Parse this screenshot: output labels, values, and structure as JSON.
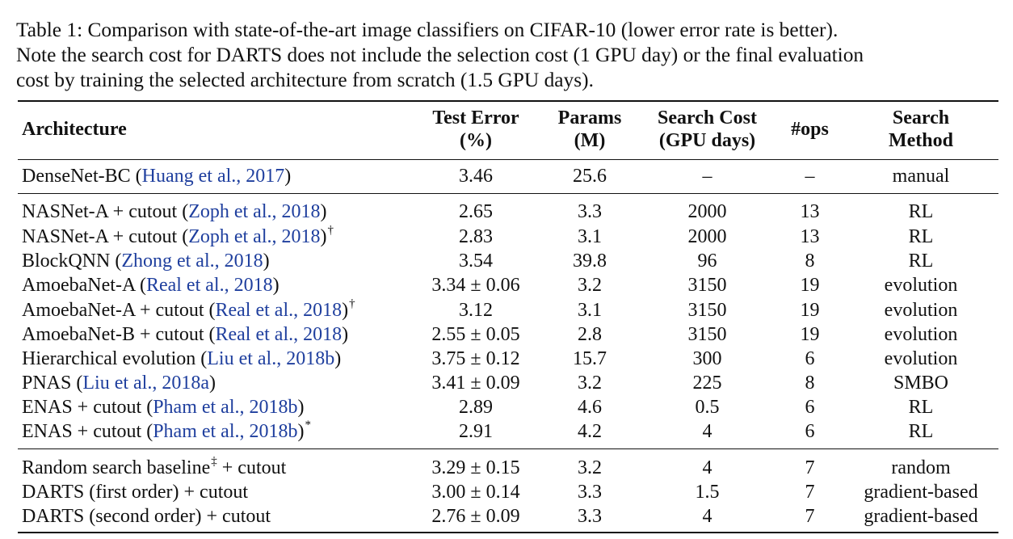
{
  "caption": {
    "lines": [
      "Table 1: Comparison with state-of-the-art image classifiers on CIFAR-10 (lower error rate is better).",
      "Note the search cost for DARTS does not include the selection cost (1 GPU day) or the final evaluation",
      "cost by training the selected architecture from scratch (1.5 GPU days)."
    ]
  },
  "header": {
    "architecture": "Architecture",
    "test_error": [
      "Test Error",
      "(%)"
    ],
    "params": [
      "Params",
      "(M)"
    ],
    "search_cost": [
      "Search Cost",
      "(GPU days)"
    ],
    "ops": "#ops",
    "search_method": [
      "Search",
      "Method"
    ]
  },
  "rows": [
    {
      "name": "DenseNet-BC (",
      "cite": "Huang et al., 2017",
      "post": ")",
      "mark": "",
      "test_error": "3.46",
      "params": "25.6",
      "search_cost": "–",
      "ops": "–",
      "method": "manual"
    },
    {
      "name": "NASNet-A + cutout (",
      "cite": "Zoph et al., 2018",
      "post": ")",
      "mark": "",
      "test_error": "2.65",
      "params": "3.3",
      "search_cost": "2000",
      "ops": "13",
      "method": "RL"
    },
    {
      "name": "NASNet-A + cutout (",
      "cite": "Zoph et al., 2018",
      "post": ")",
      "mark": "†",
      "test_error": "2.83",
      "params": "3.1",
      "search_cost": "2000",
      "ops": "13",
      "method": "RL"
    },
    {
      "name": "BlockQNN (",
      "cite": "Zhong et al., 2018",
      "post": ")",
      "mark": "",
      "test_error": "3.54",
      "params": "39.8",
      "search_cost": "96",
      "ops": "8",
      "method": "RL"
    },
    {
      "name": "AmoebaNet-A (",
      "cite": "Real et al., 2018",
      "post": ")",
      "mark": "",
      "test_error": "3.34 ± 0.06",
      "params": "3.2",
      "search_cost": "3150",
      "ops": "19",
      "method": "evolution"
    },
    {
      "name": "AmoebaNet-A + cutout (",
      "cite": "Real et al., 2018",
      "post": ")",
      "mark": "†",
      "test_error": "3.12",
      "params": "3.1",
      "search_cost": "3150",
      "ops": "19",
      "method": "evolution"
    },
    {
      "name": "AmoebaNet-B + cutout (",
      "cite": "Real et al., 2018",
      "post": ")",
      "mark": "",
      "test_error": "2.55 ± 0.05",
      "params": "2.8",
      "search_cost": "3150",
      "ops": "19",
      "method": "evolution"
    },
    {
      "name": "Hierarchical evolution (",
      "cite": "Liu et al., 2018b",
      "post": ")",
      "mark": "",
      "test_error": "3.75 ± 0.12",
      "params": "15.7",
      "search_cost": "300",
      "ops": "6",
      "method": "evolution"
    },
    {
      "name": "PNAS (",
      "cite": "Liu et al., 2018a",
      "post": ")",
      "mark": "",
      "test_error": "3.41 ± 0.09",
      "params": "3.2",
      "search_cost": "225",
      "ops": "8",
      "method": "SMBO"
    },
    {
      "name": "ENAS + cutout (",
      "cite": "Pham et al., 2018b",
      "post": ")",
      "mark": "",
      "test_error": "2.89",
      "params": "4.6",
      "search_cost": "0.5",
      "ops": "6",
      "method": "RL"
    },
    {
      "name": "ENAS + cutout (",
      "cite": "Pham et al., 2018b",
      "post": ")",
      "mark": "*",
      "test_error": "2.91",
      "params": "4.2",
      "search_cost": "4",
      "ops": "6",
      "method": "RL"
    },
    {
      "name": "Random search baseline",
      "cite": "",
      "post": "",
      "mark": "‡",
      "after_mark": " + cutout",
      "test_error": "3.29 ± 0.15",
      "params": "3.2",
      "search_cost": "4",
      "ops": "7",
      "method": "random"
    },
    {
      "name": "DARTS (first order) + cutout",
      "cite": "",
      "post": "",
      "mark": "",
      "test_error": "3.00 ± 0.14",
      "params": "3.3",
      "search_cost": "1.5",
      "ops": "7",
      "method": "gradient-based"
    },
    {
      "name": "DARTS (second order) + cutout",
      "cite": "",
      "post": "",
      "mark": "",
      "test_error": "2.76 ± 0.09",
      "params": "3.3",
      "search_cost": "4",
      "ops": "7",
      "method": "gradient-based"
    }
  ]
}
